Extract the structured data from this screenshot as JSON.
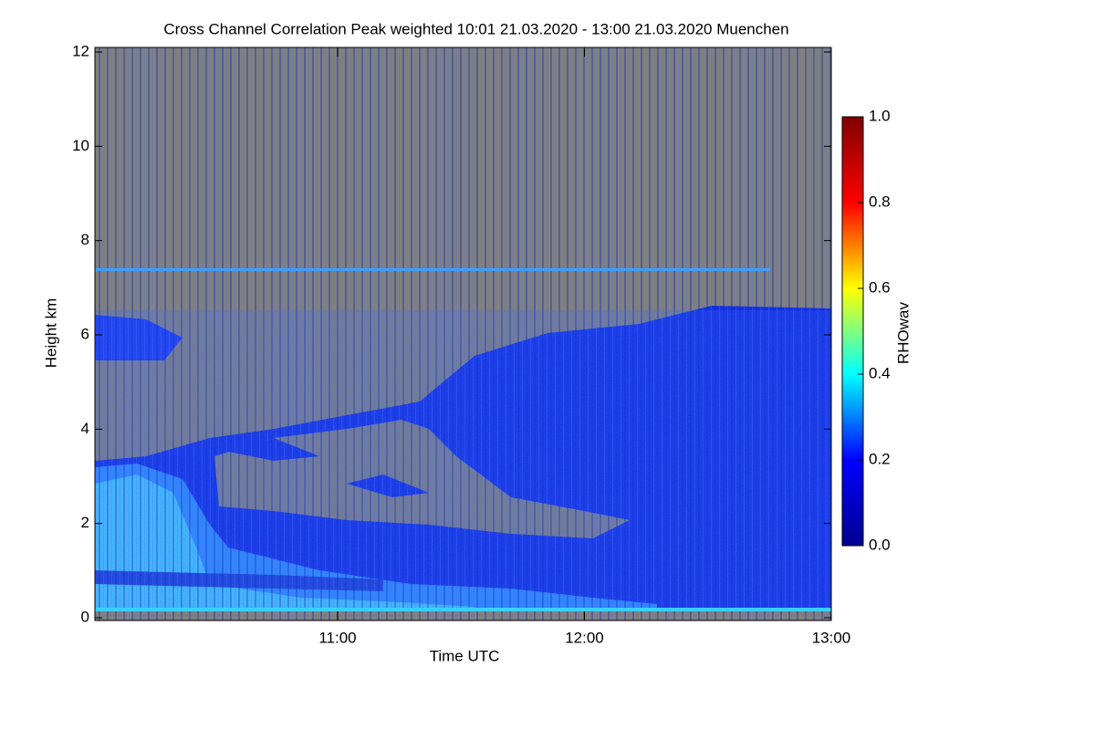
{
  "chart_data": {
    "type": "heatmap",
    "title": "Cross Channel Correlation Peak weighted   10:01 21.03.2020 - 13:00 21.03.2020 Muenchen",
    "x_label": "Time UTC",
    "y_label": "Height km",
    "xlim": [
      10.0167,
      13.0
    ],
    "xticks": [
      {
        "value": 11,
        "label": "11:00"
      },
      {
        "value": 12,
        "label": "12:00"
      },
      {
        "value": 13,
        "label": "13:00"
      }
    ],
    "ylim": [
      0,
      12
    ],
    "yticks": [
      0,
      2,
      4,
      6,
      8,
      10,
      12
    ],
    "colorbar": {
      "label": "RHOwav",
      "lim": [
        0,
        1
      ],
      "ticks": [
        {
          "value": 0,
          "label": "0.0"
        },
        0.2,
        0.4,
        0.6,
        0.8,
        {
          "value": 1,
          "label": "1.0"
        }
      ],
      "colors": [
        "#00008f",
        "#0000ff",
        "#00ffff",
        "#ffff00",
        "#ff0000",
        "#800000"
      ]
    }
  }
}
